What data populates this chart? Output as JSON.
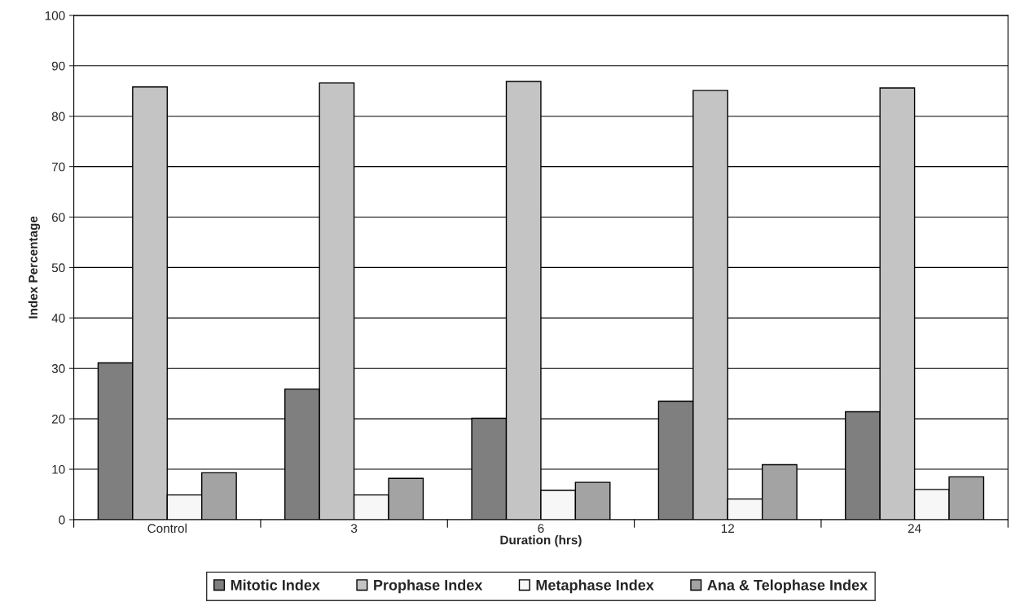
{
  "chart_data": {
    "type": "bar",
    "xlabel": "Duration (hrs)",
    "ylabel": "Index Percentage",
    "categories": [
      "Control",
      "3",
      "6",
      "12",
      "24"
    ],
    "series": [
      {
        "name": "Mitotic Index",
        "color": "#7f7f7f",
        "values": [
          31.1,
          25.9,
          20.1,
          23.5,
          21.4
        ]
      },
      {
        "name": "Prophase Index",
        "color": "#c4c4c4",
        "values": [
          85.8,
          86.6,
          86.9,
          85.1,
          85.6
        ]
      },
      {
        "name": "Metaphase Index",
        "color": "#f7f7f7",
        "values": [
          4.9,
          4.9,
          5.8,
          4.1,
          6.0
        ]
      },
      {
        "name": "Ana & Telophase Index",
        "color": "#a3a3a3",
        "values": [
          9.3,
          8.2,
          7.4,
          10.9,
          8.5
        ]
      }
    ],
    "ylim": [
      0,
      100
    ],
    "yticks": [
      0,
      10,
      20,
      30,
      40,
      50,
      60,
      70,
      80,
      90,
      100
    ],
    "grid": "y",
    "legend": "bottom"
  }
}
